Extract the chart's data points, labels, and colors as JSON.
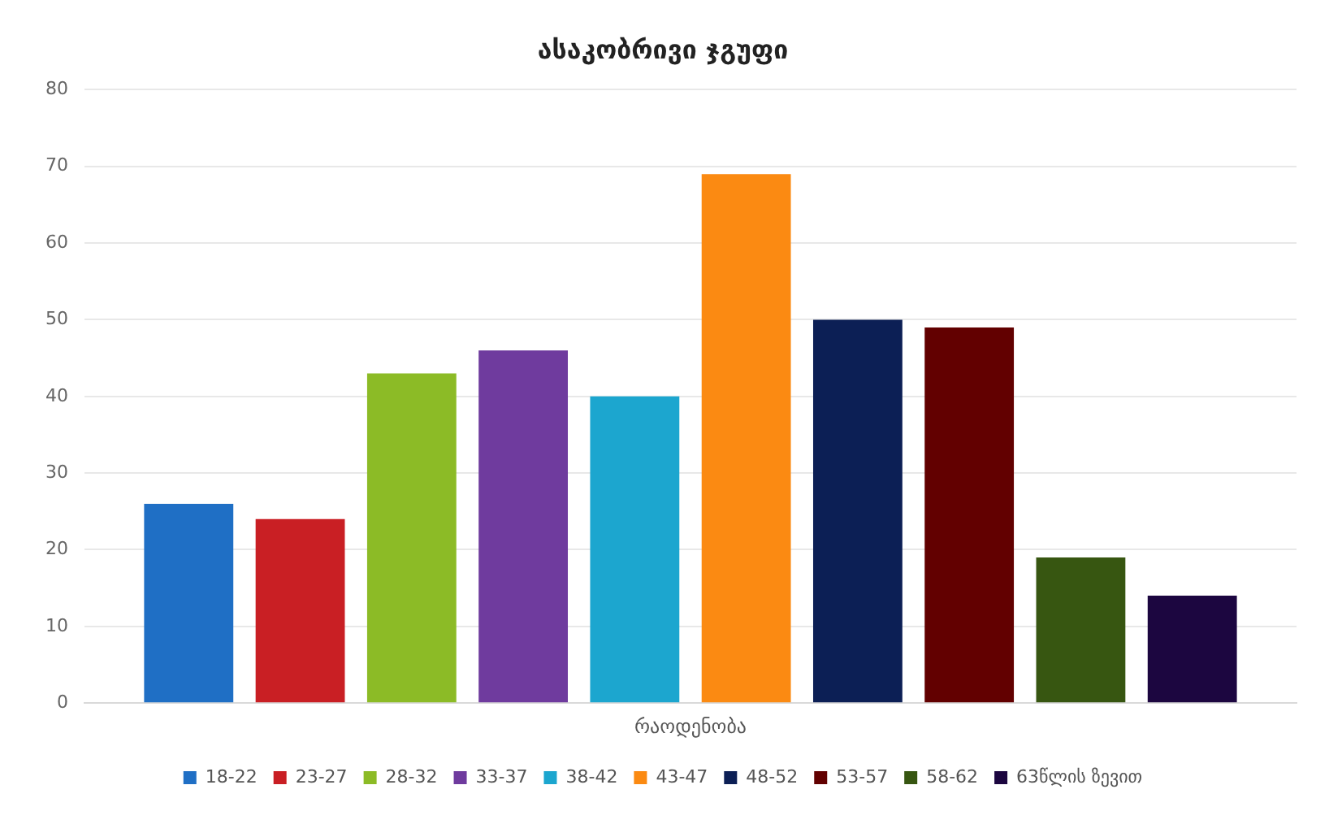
{
  "chart_data": {
    "type": "bar",
    "title": "ასაკობრივი ჯგუფი",
    "categories": [
      "რაოდენობა"
    ],
    "series": [
      {
        "name": "18-22",
        "color": "#1f6fc5",
        "values": [
          26
        ]
      },
      {
        "name": "23-27",
        "color": "#c91f24",
        "values": [
          24
        ]
      },
      {
        "name": "28-32",
        "color": "#8cbb26",
        "values": [
          43
        ]
      },
      {
        "name": "33-37",
        "color": "#6f3b9e",
        "values": [
          46
        ]
      },
      {
        "name": "38-42",
        "color": "#1ca6cf",
        "values": [
          40
        ]
      },
      {
        "name": "43-47",
        "color": "#fb8a12",
        "values": [
          69
        ]
      },
      {
        "name": "48-52",
        "color": "#0c1f55",
        "values": [
          50
        ]
      },
      {
        "name": "53-57",
        "color": "#620000",
        "values": [
          49
        ]
      },
      {
        "name": "58-62",
        "color": "#375611",
        "values": [
          19
        ]
      },
      {
        "name": "63წლის ზევით",
        "color": "#1c0640",
        "values": [
          14
        ]
      }
    ],
    "ylim": [
      0,
      80
    ],
    "yticks": [
      0,
      10,
      20,
      30,
      40,
      50,
      60,
      70,
      80
    ],
    "grid": "y",
    "legend": "bottom"
  }
}
